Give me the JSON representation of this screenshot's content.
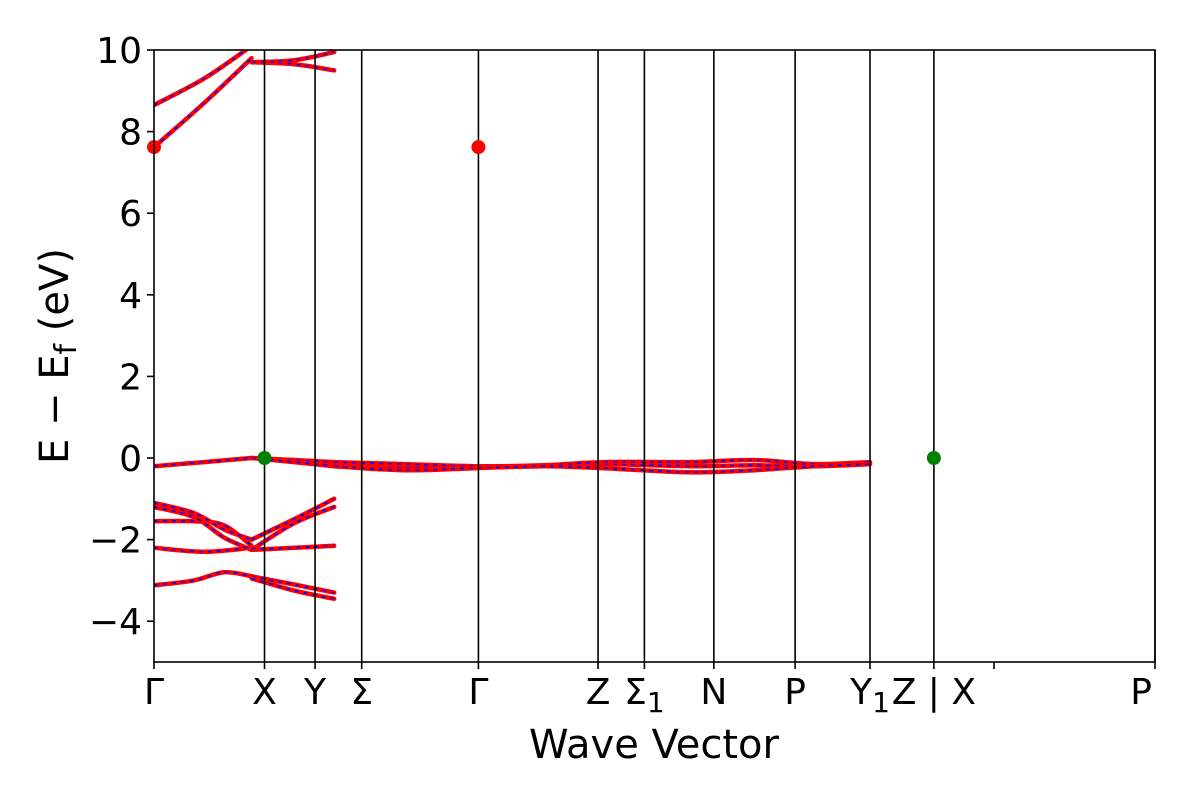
{
  "chart_data": {
    "type": "line",
    "title": "",
    "xlabel": "Wave Vector",
    "ylabel_parts": [
      "E − E",
      "f",
      " (eV)"
    ],
    "ylim": [
      -5,
      10
    ],
    "yticks": [
      10,
      8,
      6,
      4,
      2,
      0,
      -2,
      -4
    ],
    "ytick_labels": [
      "10",
      "8",
      "6",
      "4",
      "2",
      "0",
      "−2",
      "−4"
    ],
    "grid": false,
    "legend": "none",
    "kpath_positions": [
      0,
      0.1104,
      0.1609,
      0.2075,
      0.3241,
      0.4436,
      0.4899,
      0.5593,
      0.6405,
      0.7153,
      0.7791,
      0.8392,
      1.0
    ],
    "kpath_vlines": [
      0.1104,
      0.1609,
      0.2075,
      0.3241,
      0.4436,
      0.4899,
      0.5593,
      0.6405,
      0.7153,
      0.7791,
      1.0
    ],
    "kpath_labels": [
      {
        "main": "Γ",
        "sub": ""
      },
      {
        "main": "X",
        "sub": ""
      },
      {
        "main": "Y",
        "sub": ""
      },
      {
        "main": "Σ",
        "sub": ""
      },
      {
        "main": "Γ",
        "sub": ""
      },
      {
        "main": "Z",
        "sub": ""
      },
      {
        "main": "Σ",
        "sub": "1"
      },
      {
        "main": "N",
        "sub": ""
      },
      {
        "main": "P",
        "sub": ""
      },
      {
        "main": "Y",
        "sub": "1"
      },
      {
        "main": "Z | X",
        "sub": ""
      },
      {
        "main": "P",
        "sub": ""
      }
    ],
    "kpath_label_positions": [
      0,
      0.1104,
      0.1609,
      0.2075,
      0.3241,
      0.4436,
      0.4899,
      0.5593,
      0.6405,
      0.7153,
      0.7791,
      1.0
    ],
    "series_colors": {
      "band": "#ff0000",
      "band_dash": "#0000ff"
    },
    "series": [
      {
        "segment": 1,
        "x": [
          0,
          0.04,
          0.07,
          0.0975
        ],
        "y": [
          -3.12,
          -3.0,
          -2.8,
          -2.9
        ]
      },
      {
        "segment": 1,
        "x": [
          0,
          0.05,
          0.0975
        ],
        "y": [
          -2.2,
          -2.3,
          -2.2
        ]
      },
      {
        "segment": 1,
        "x": [
          0,
          0.04,
          0.07,
          0.0975
        ],
        "y": [
          -1.55,
          -1.55,
          -1.65,
          -2.15
        ]
      },
      {
        "segment": 1,
        "x": [
          0,
          0.04,
          0.07,
          0.0975
        ],
        "y": [
          -1.2,
          -1.45,
          -1.95,
          -2.25
        ]
      },
      {
        "segment": 1,
        "x": [
          0,
          0.04,
          0.07,
          0.0975
        ],
        "y": [
          -1.1,
          -1.35,
          -1.75,
          -2.0
        ]
      },
      {
        "segment": 1,
        "x": [
          0,
          0.05,
          0.0975
        ],
        "y": [
          -0.2,
          -0.1,
          0.0
        ]
      },
      {
        "segment": 1,
        "x": [
          0,
          0.05,
          0.0975
        ],
        "y": [
          7.62,
          8.7,
          9.8
        ]
      },
      {
        "segment": 1,
        "x": [
          0,
          0.05,
          0.0975
        ],
        "y": [
          8.65,
          9.3,
          10.1
        ]
      },
      {
        "segment": 2,
        "x": [
          0.0975,
          0.14,
          0.18
        ],
        "y": [
          -2.9,
          -3.1,
          -3.3
        ]
      },
      {
        "segment": 2,
        "x": [
          0.0975,
          0.14,
          0.18
        ],
        "y": [
          -2.95,
          -3.25,
          -3.45
        ]
      },
      {
        "segment": 2,
        "x": [
          0.0975,
          0.14,
          0.18
        ],
        "y": [
          -2.25,
          -2.2,
          -2.15
        ]
      },
      {
        "segment": 2,
        "x": [
          0.0975,
          0.14,
          0.18
        ],
        "y": [
          -2.0,
          -1.5,
          -1.0
        ]
      },
      {
        "segment": 2,
        "x": [
          0.0975,
          0.14,
          0.18
        ],
        "y": [
          -2.25,
          -1.6,
          -1.2
        ]
      },
      {
        "segment": 2,
        "x": [
          0.0975,
          0.14,
          0.18
        ],
        "y": [
          0.0,
          -0.05,
          -0.1
        ]
      },
      {
        "segment": 2,
        "x": [
          0.0975,
          0.14,
          0.18
        ],
        "y": [
          0.0,
          -0.1,
          -0.2
        ]
      },
      {
        "segment": 2,
        "x": [
          0.0975,
          0.14,
          0.18
        ],
        "y": [
          9.7,
          9.65,
          9.5
        ]
      },
      {
        "segment": 2,
        "x": [
          0.0975,
          0.14,
          0.18
        ],
        "y": [
          9.7,
          9.75,
          9.95
        ]
      },
      {
        "segment": 3,
        "x": [
          0.18,
          0.25,
          0.32,
          0.39,
          0.45,
          0.535,
          0.6,
          0.66,
          0.7153
        ],
        "y": [
          -0.2,
          -0.25,
          -0.22,
          -0.2,
          -0.15,
          -0.2,
          -0.18,
          -0.2,
          -0.15
        ]
      },
      {
        "segment": 3,
        "x": [
          0.18,
          0.25,
          0.32,
          0.39,
          0.45,
          0.535,
          0.6,
          0.66,
          0.7153
        ],
        "y": [
          -0.1,
          -0.15,
          -0.2,
          -0.18,
          -0.1,
          -0.1,
          -0.05,
          -0.15,
          -0.1
        ]
      },
      {
        "segment": 3,
        "x": [
          0.18,
          0.25,
          0.32,
          0.39,
          0.45,
          0.535,
          0.6,
          0.66,
          0.7153
        ],
        "y": [
          -0.2,
          -0.3,
          -0.25,
          -0.2,
          -0.25,
          -0.35,
          -0.3,
          -0.2,
          -0.15
        ]
      }
    ],
    "markers": [
      {
        "x": 0,
        "y": 7.62,
        "color": "#ff0000"
      },
      {
        "x": 0.3241,
        "y": 7.62,
        "color": "#ff0000"
      },
      {
        "x": 0.1104,
        "y": 0,
        "color": "#008000"
      },
      {
        "x": 0.7791,
        "y": 0,
        "color": "#008000"
      }
    ]
  }
}
